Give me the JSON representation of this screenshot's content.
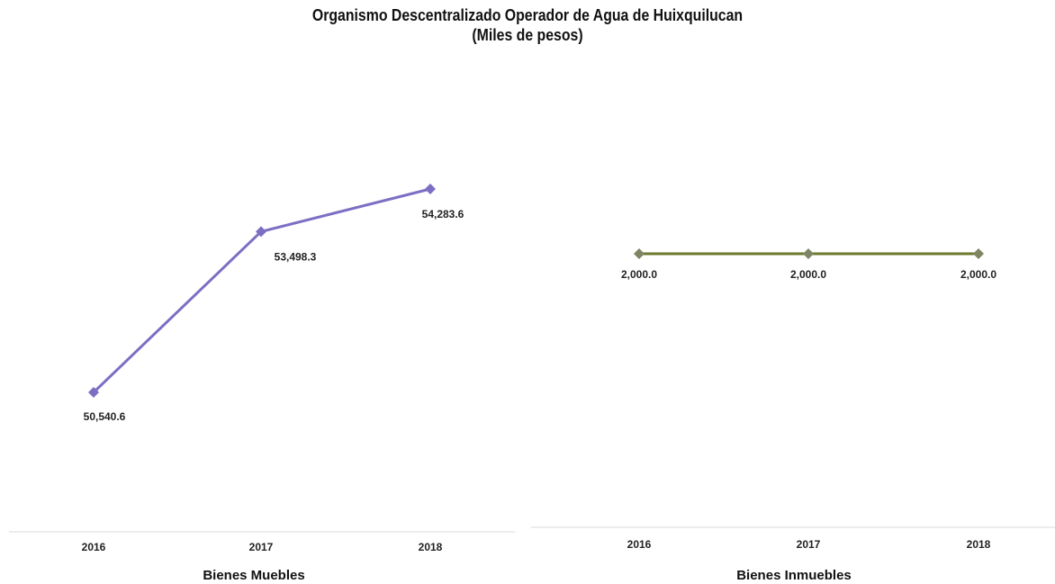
{
  "page": {
    "title_line1": "Organismo Descentralizado Operador de Agua de Huixquilucan",
    "title_line2": "(Miles de pesos)"
  },
  "chart_data": [
    {
      "type": "line",
      "categories": [
        "2016",
        "2017",
        "2018"
      ],
      "series": [
        {
          "values": [
            50540.6,
            53498.3,
            54283.6
          ],
          "color": "#7b6fc4"
        }
      ],
      "data_labels": [
        "50,540.6",
        "53,498.3",
        "54,283.6"
      ],
      "xlabel": "Bienes Muebles",
      "ylim": [
        48500,
        55500
      ],
      "marker": "diamond",
      "grid": false
    },
    {
      "type": "line",
      "categories": [
        "2016",
        "2017",
        "2018"
      ],
      "series": [
        {
          "values": [
            2000.0,
            2000.0,
            2000.0
          ],
          "color": "#6b7a2e",
          "marker_color": "#7d8563"
        }
      ],
      "data_labels": [
        "2,000.0",
        "2,000.0",
        "2,000.0"
      ],
      "xlabel": "Bienes Inmuebles",
      "grid": false,
      "marker": "diamond"
    }
  ]
}
